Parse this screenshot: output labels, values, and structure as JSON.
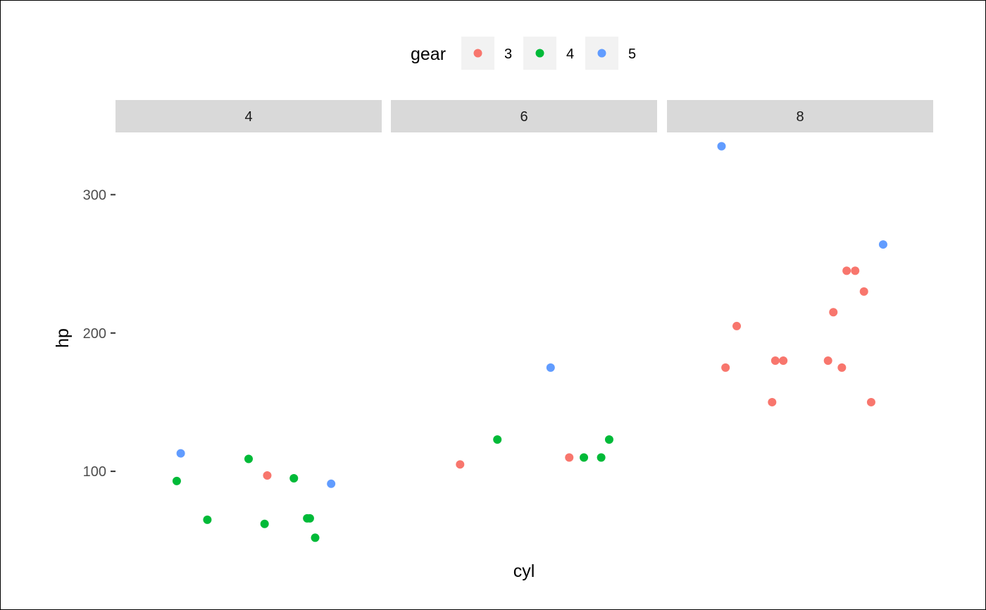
{
  "chart_data": {
    "type": "scatter",
    "xlabel": "cyl",
    "ylabel": "hp",
    "legend": {
      "title": "gear",
      "position": "top",
      "items": [
        {
          "label": "3",
          "color": "#F8766D"
        },
        {
          "label": "4",
          "color": "#00BA38"
        },
        {
          "label": "5",
          "color": "#619CFF"
        }
      ]
    },
    "facets": [
      "4",
      "6",
      "8"
    ],
    "ylim": [
      41,
      345
    ],
    "y_ticks": [
      100,
      200,
      300
    ],
    "grid": false,
    "points": [
      {
        "facet": "4",
        "jitter": 0.23,
        "hp": 93,
        "gear": "4"
      },
      {
        "facet": "4",
        "jitter": 0.245,
        "hp": 113,
        "gear": "5"
      },
      {
        "facet": "4",
        "jitter": 0.345,
        "hp": 65,
        "gear": "4"
      },
      {
        "facet": "4",
        "jitter": 0.5,
        "hp": 109,
        "gear": "4"
      },
      {
        "facet": "4",
        "jitter": 0.57,
        "hp": 97,
        "gear": "3"
      },
      {
        "facet": "4",
        "jitter": 0.56,
        "hp": 62,
        "gear": "4"
      },
      {
        "facet": "4",
        "jitter": 0.67,
        "hp": 95,
        "gear": "4"
      },
      {
        "facet": "4",
        "jitter": 0.72,
        "hp": 66,
        "gear": "4"
      },
      {
        "facet": "4",
        "jitter": 0.73,
        "hp": 66,
        "gear": "4"
      },
      {
        "facet": "4",
        "jitter": 0.75,
        "hp": 52,
        "gear": "4"
      },
      {
        "facet": "4",
        "jitter": 0.81,
        "hp": 91,
        "gear": "5"
      },
      {
        "facet": "6",
        "jitter": 0.26,
        "hp": 105,
        "gear": "3"
      },
      {
        "facet": "6",
        "jitter": 0.4,
        "hp": 123,
        "gear": "4"
      },
      {
        "facet": "6",
        "jitter": 0.6,
        "hp": 175,
        "gear": "5"
      },
      {
        "facet": "6",
        "jitter": 0.67,
        "hp": 110,
        "gear": "3"
      },
      {
        "facet": "6",
        "jitter": 0.725,
        "hp": 110,
        "gear": "4"
      },
      {
        "facet": "6",
        "jitter": 0.79,
        "hp": 110,
        "gear": "4"
      },
      {
        "facet": "6",
        "jitter": 0.82,
        "hp": 123,
        "gear": "4"
      },
      {
        "facet": "8",
        "jitter": 0.205,
        "hp": 335,
        "gear": "5"
      },
      {
        "facet": "8",
        "jitter": 0.22,
        "hp": 175,
        "gear": "3"
      },
      {
        "facet": "8",
        "jitter": 0.262,
        "hp": 205,
        "gear": "3"
      },
      {
        "facet": "8",
        "jitter": 0.395,
        "hp": 150,
        "gear": "3"
      },
      {
        "facet": "8",
        "jitter": 0.407,
        "hp": 180,
        "gear": "3"
      },
      {
        "facet": "8",
        "jitter": 0.437,
        "hp": 180,
        "gear": "3"
      },
      {
        "facet": "8",
        "jitter": 0.605,
        "hp": 180,
        "gear": "3"
      },
      {
        "facet": "8",
        "jitter": 0.625,
        "hp": 215,
        "gear": "3"
      },
      {
        "facet": "8",
        "jitter": 0.657,
        "hp": 175,
        "gear": "3"
      },
      {
        "facet": "8",
        "jitter": 0.675,
        "hp": 245,
        "gear": "3"
      },
      {
        "facet": "8",
        "jitter": 0.707,
        "hp": 245,
        "gear": "3"
      },
      {
        "facet": "8",
        "jitter": 0.74,
        "hp": 230,
        "gear": "3"
      },
      {
        "facet": "8",
        "jitter": 0.767,
        "hp": 150,
        "gear": "3"
      },
      {
        "facet": "8",
        "jitter": 0.812,
        "hp": 264,
        "gear": "5"
      }
    ]
  }
}
